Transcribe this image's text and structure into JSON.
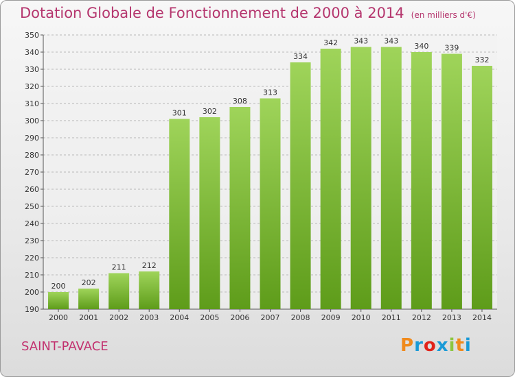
{
  "header": {
    "title": "Dotation Globale de Fonctionnement de 2000 à 2014",
    "subtitle": "(en milliers d'€)"
  },
  "footer": {
    "place": "SAINT-PAVACE",
    "brand": "Proxiti",
    "brand_colors": [
      "#f08a1c",
      "#1a9ad6",
      "#e2231a",
      "#1a9ad6",
      "#8cc63f",
      "#f08a1c",
      "#1a9ad6"
    ]
  },
  "colors": {
    "bar_top": "#9fd45a",
    "bar_bottom": "#5e9c1a",
    "title": "#b5366e",
    "grid": "#b8b8b8"
  },
  "chart_data": {
    "type": "bar",
    "title": "Dotation Globale de Fonctionnement de 2000 à 2014",
    "subtitle": "(en milliers d'€)",
    "xlabel": "",
    "ylabel": "",
    "categories": [
      "2000",
      "2001",
      "2002",
      "2003",
      "2004",
      "2005",
      "2006",
      "2007",
      "2008",
      "2009",
      "2010",
      "2011",
      "2012",
      "2013",
      "2014"
    ],
    "values": [
      200,
      202,
      211,
      212,
      301,
      302,
      308,
      313,
      334,
      342,
      343,
      343,
      340,
      339,
      332
    ],
    "ylim": [
      190,
      350
    ],
    "yticks": [
      190,
      200,
      210,
      220,
      230,
      240,
      250,
      260,
      270,
      280,
      290,
      300,
      310,
      320,
      330,
      340,
      350
    ],
    "grid": true,
    "legend": "none"
  }
}
